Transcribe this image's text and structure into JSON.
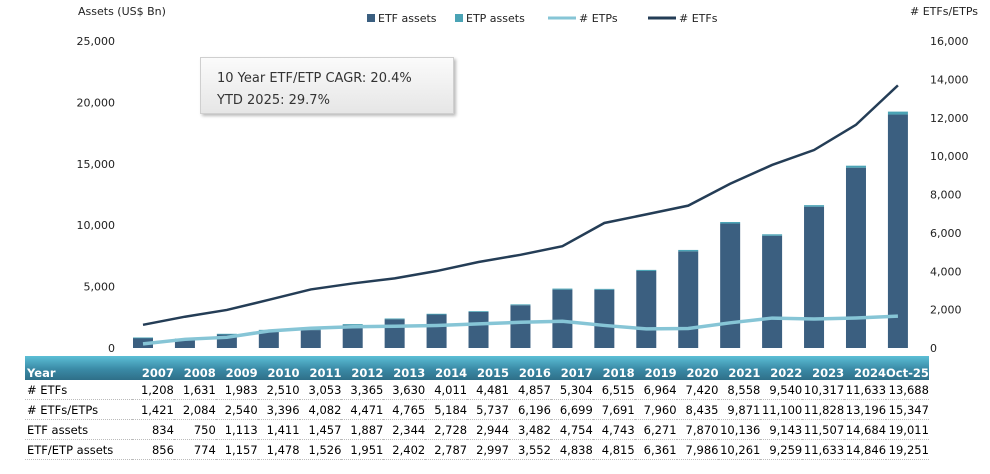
{
  "chart_data": {
    "type": "bar",
    "left_axis_label": "Assets (US$ Bn)",
    "right_axis_label": "# ETFs/ETPs",
    "left_ylim": [
      0,
      25000
    ],
    "right_ylim": [
      0,
      16000
    ],
    "left_ticks": [
      "0",
      "5,000",
      "10,000",
      "15,000",
      "20,000",
      "25,000"
    ],
    "right_ticks": [
      "0",
      "2,000",
      "4,000",
      "6,000",
      "8,000",
      "10,000",
      "12,000",
      "14,000",
      "16,000"
    ],
    "grid": false,
    "legend_placement": "top",
    "categories": [
      "2007",
      "2008",
      "2009",
      "2010",
      "2011",
      "2012",
      "2013",
      "2014",
      "2015",
      "2016",
      "2017",
      "2018",
      "2019",
      "2020",
      "2021",
      "2022",
      "2023",
      "2024",
      "Oct-25"
    ],
    "series": [
      {
        "name": "ETF assets",
        "kind": "stacked-bar",
        "axis": "left",
        "color": "#3b5f80",
        "values": [
          834,
          750,
          1113,
          1411,
          1457,
          1887,
          2344,
          2728,
          2944,
          3482,
          4754,
          4743,
          6271,
          7870,
          10136,
          9143,
          11507,
          14684,
          19011
        ]
      },
      {
        "name": "ETP assets",
        "kind": "stacked-bar",
        "axis": "left",
        "color": "#4aa3b5",
        "values": [
          22,
          24,
          44,
          67,
          69,
          64,
          58,
          59,
          53,
          70,
          84,
          72,
          90,
          116,
          125,
          116,
          126,
          162,
          240
        ]
      },
      {
        "name": "# ETPs",
        "kind": "line",
        "axis": "right",
        "color": "#86c5d6",
        "values": [
          213,
          453,
          557,
          886,
          1029,
          1106,
          1135,
          1173,
          1256,
          1339,
          1395,
          1176,
          996,
          1015,
          1313,
          1560,
          1511,
          1563,
          1659
        ]
      },
      {
        "name": "# ETFs",
        "kind": "line",
        "axis": "right",
        "color": "#243d56",
        "values": [
          1208,
          1631,
          1983,
          2510,
          3053,
          3365,
          3630,
          4011,
          4481,
          4857,
          5304,
          6515,
          6964,
          7420,
          8558,
          9540,
          10317,
          11633,
          13688
        ]
      }
    ],
    "annotations": [
      "10 Year ETF/ETP CAGR: 20.4%",
      "YTD 2025: 29.7%"
    ]
  },
  "table": {
    "header": "Year",
    "years": [
      "2007",
      "2008",
      "2009",
      "2010",
      "2011",
      "2012",
      "2013",
      "2014",
      "2015",
      "2016",
      "2017",
      "2018",
      "2019",
      "2020",
      "2021",
      "2022",
      "2023",
      "2024",
      "Oct-25"
    ],
    "rows": [
      {
        "label": "# ETFs",
        "values": [
          "1,208",
          "1,631",
          "1,983",
          "2,510",
          "3,053",
          "3,365",
          "3,630",
          "4,011",
          "4,481",
          "4,857",
          "5,304",
          "6,515",
          "6,964",
          "7,420",
          "8,558",
          "9,540",
          "10,317",
          "11,633",
          "13,688"
        ]
      },
      {
        "label": "# ETFs/ETPs",
        "values": [
          "1,421",
          "2,084",
          "2,540",
          "3,396",
          "4,082",
          "4,471",
          "4,765",
          "5,184",
          "5,737",
          "6,196",
          "6,699",
          "7,691",
          "7,960",
          "8,435",
          "9,871",
          "11,100",
          "11,828",
          "13,196",
          "15,347"
        ]
      },
      {
        "label": "ETF assets",
        "values": [
          "834",
          "750",
          "1,113",
          "1,411",
          "1,457",
          "1,887",
          "2,344",
          "2,728",
          "2,944",
          "3,482",
          "4,754",
          "4,743",
          "6,271",
          "7,870",
          "10,136",
          "9,143",
          "11,507",
          "14,684",
          "19,011"
        ]
      },
      {
        "label": "ETF/ETP assets",
        "values": [
          "856",
          "774",
          "1,157",
          "1,478",
          "1,526",
          "1,951",
          "2,402",
          "2,787",
          "2,997",
          "3,552",
          "4,838",
          "4,815",
          "6,361",
          "7,986",
          "10,261",
          "9,259",
          "11,633",
          "14,846",
          "19,251"
        ]
      }
    ]
  }
}
